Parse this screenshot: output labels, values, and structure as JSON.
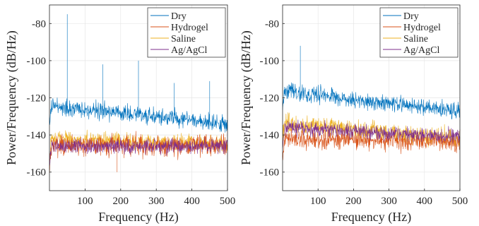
{
  "colors": {
    "Dry": "#0072BD",
    "Hydrogel": "#D95319",
    "Saline": "#EDB120",
    "Ag/AgCl": "#7E2F8E"
  },
  "chart_data": [
    {
      "type": "line",
      "title": "",
      "xlabel": "Frequency (Hz)",
      "ylabel": "Power/Frequency (dB/Hz)",
      "xlim": [
        0,
        500
      ],
      "ylim": [
        -170,
        -70
      ],
      "xticks": [
        100,
        200,
        300,
        400,
        500
      ],
      "yticks": [
        -80,
        -100,
        -120,
        -140,
        -160
      ],
      "grid": true,
      "legend_position": "top-right",
      "series": [
        {
          "name": "Dry",
          "baseline": [
            [
              0,
              -124
            ],
            [
              250,
              -129
            ],
            [
              500,
              -134
            ]
          ],
          "spread": 3.5,
          "peaks": [
            [
              50,
              -75
            ],
            [
              150,
              -102
            ],
            [
              250,
              -100
            ],
            [
              350,
              -112
            ],
            [
              450,
              -111
            ]
          ]
        },
        {
          "name": "Hydrogel",
          "baseline": [
            [
              0,
              -146
            ],
            [
              500,
              -146
            ]
          ],
          "spread": 4.5,
          "peaks": [
            [
              190,
              -160
            ]
          ]
        },
        {
          "name": "Saline",
          "baseline": [
            [
              0,
              -142
            ],
            [
              500,
              -145
            ]
          ],
          "spread": 3.5,
          "peaks": []
        },
        {
          "name": "Ag/AgCl",
          "baseline": [
            [
              0,
              -146
            ],
            [
              500,
              -146
            ]
          ],
          "spread": 3,
          "peaks": []
        }
      ]
    },
    {
      "type": "line",
      "title": "",
      "xlabel": "Frequency (Hz)",
      "ylabel": "Power/Frequency (dB/Hz)",
      "xlim": [
        0,
        500
      ],
      "ylim": [
        -170,
        -70
      ],
      "xticks": [
        100,
        200,
        300,
        400,
        500
      ],
      "yticks": [
        -80,
        -100,
        -120,
        -140,
        -160
      ],
      "grid": true,
      "legend_position": "top-right",
      "series": [
        {
          "name": "Dry",
          "baseline": [
            [
              0,
              -116
            ],
            [
              250,
              -122
            ],
            [
              500,
              -127
            ]
          ],
          "spread": 3.5,
          "peaks": [
            [
              50,
              -92
            ]
          ]
        },
        {
          "name": "Hydrogel",
          "baseline": [
            [
              0,
              -142
            ],
            [
              500,
              -144
            ]
          ],
          "spread": 4,
          "peaks": []
        },
        {
          "name": "Saline",
          "baseline": [
            [
              0,
              -134
            ],
            [
              500,
              -142
            ]
          ],
          "spread": 4,
          "peaks": []
        },
        {
          "name": "Ag/AgCl",
          "baseline": [
            [
              0,
              -136
            ],
            [
              500,
              -141
            ]
          ],
          "spread": 3,
          "peaks": []
        }
      ]
    }
  ]
}
